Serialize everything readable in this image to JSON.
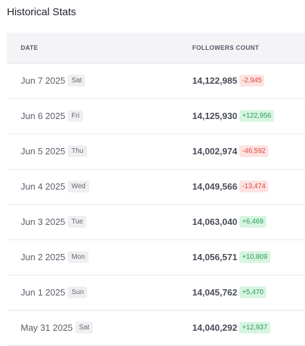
{
  "header": {
    "title": "Historical Stats"
  },
  "table": {
    "columns": [
      "DATE",
      "FOLLOWERS COUNT"
    ],
    "rows": [
      {
        "date": "Jun 7 2025",
        "weekday": "Sat",
        "followers": "14,122,985",
        "change": "-2,945"
      },
      {
        "date": "Jun 6 2025",
        "weekday": "Fri",
        "followers": "14,125,930",
        "change": "+122,956"
      },
      {
        "date": "Jun 5 2025",
        "weekday": "Thu",
        "followers": "14,002,974",
        "change": "-46,592"
      },
      {
        "date": "Jun 4 2025",
        "weekday": "Wed",
        "followers": "14,049,566",
        "change": "-13,474"
      },
      {
        "date": "Jun 3 2025",
        "weekday": "Tue",
        "followers": "14,063,040",
        "change": "+6,469"
      },
      {
        "date": "Jun 2 2025",
        "weekday": "Mon",
        "followers": "14,056,571",
        "change": "+10,809"
      },
      {
        "date": "Jun 1 2025",
        "weekday": "Sun",
        "followers": "14,045,762",
        "change": "+5,470"
      },
      {
        "date": "May 31 2025",
        "weekday": "Sat",
        "followers": "14,040,292",
        "change": "+12,937"
      }
    ]
  }
}
